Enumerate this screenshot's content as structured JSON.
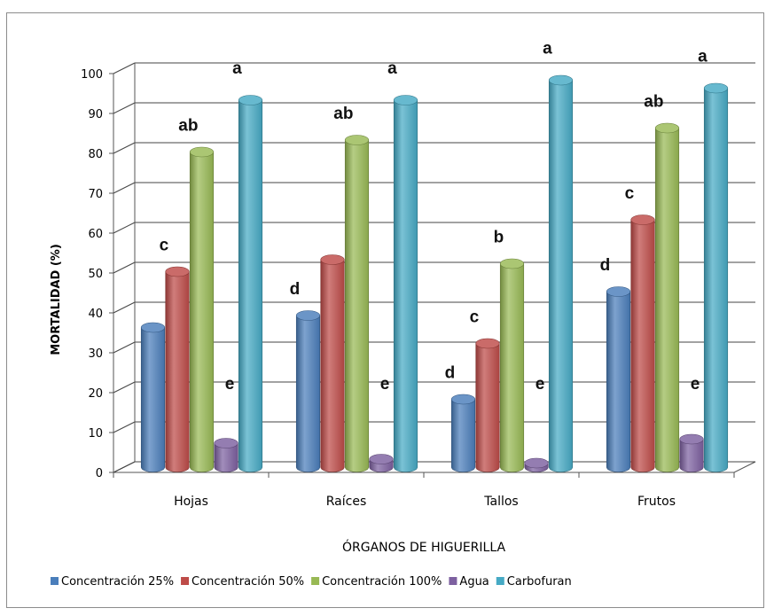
{
  "chart_data": {
    "type": "bar",
    "title": "",
    "xlabel": "ÓRGANOS DE HIGUERILLA",
    "ylabel": "MORTALIDAD (%)",
    "ylim": [
      0,
      100
    ],
    "yticks": [
      "0",
      "10",
      "20",
      "30",
      "40",
      "50",
      "60",
      "70",
      "80",
      "90",
      "100"
    ],
    "categories": [
      "Hojas",
      "Raíces",
      "Tallos",
      "Frutos"
    ],
    "grid": true,
    "legend_position": "bottom",
    "series": [
      {
        "name": "Concentración 25%",
        "color": "#4a7ebb",
        "values": [
          35,
          38,
          17,
          44
        ],
        "labels": [
          "",
          "d",
          "d",
          "d"
        ]
      },
      {
        "name": "Concentración 50%",
        "color": "#be4b48",
        "values": [
          49,
          52,
          31,
          62
        ],
        "labels": [
          "c",
          "",
          "c",
          "c"
        ]
      },
      {
        "name": "Concentración 100%",
        "color": "#98b954",
        "values": [
          79,
          82,
          51,
          85
        ],
        "labels": [
          "ab",
          "ab",
          "b",
          "ab"
        ]
      },
      {
        "name": "Agua",
        "color": "#7d60a0",
        "values": [
          6,
          2,
          1,
          7
        ],
        "labels": [
          "e",
          "e",
          "e",
          "e"
        ]
      },
      {
        "name": "Carbofuran",
        "color": "#46aac5",
        "values": [
          92,
          92,
          97,
          95
        ],
        "labels": [
          "a",
          "a",
          "a",
          "a"
        ]
      }
    ]
  }
}
